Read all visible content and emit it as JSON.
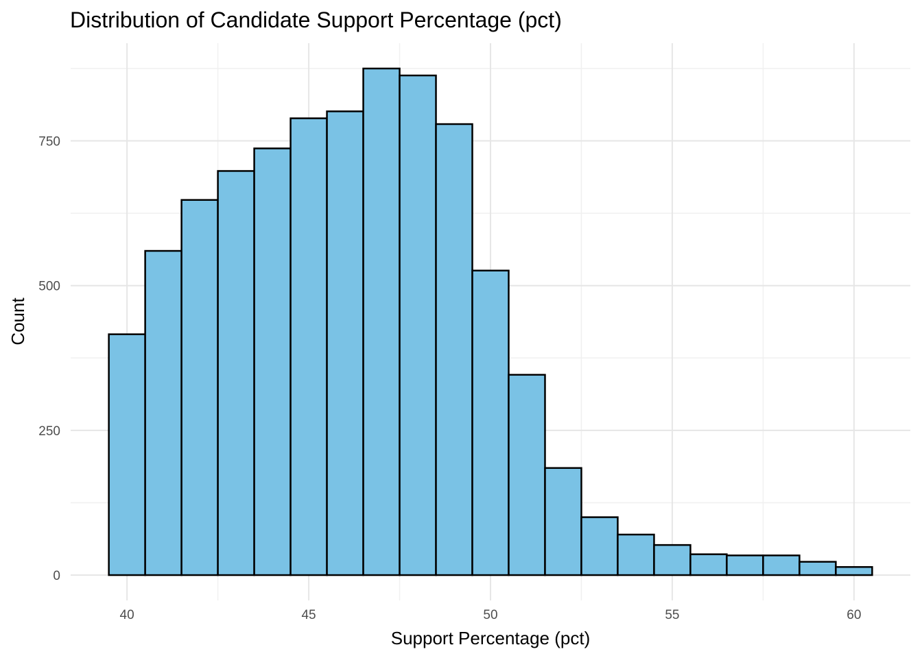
{
  "chart_data": {
    "type": "bar",
    "title": "Distribution of Candidate Support Percentage (pct)",
    "xlabel": "Support Percentage (pct)",
    "ylabel": "Count",
    "bin_width": 1,
    "bins": [
      {
        "center": 40,
        "count": 416
      },
      {
        "center": 41,
        "count": 560
      },
      {
        "center": 42,
        "count": 648
      },
      {
        "center": 43,
        "count": 698
      },
      {
        "center": 44,
        "count": 737
      },
      {
        "center": 45,
        "count": 789
      },
      {
        "center": 46,
        "count": 801
      },
      {
        "center": 47,
        "count": 875
      },
      {
        "center": 48,
        "count": 863
      },
      {
        "center": 49,
        "count": 779
      },
      {
        "center": 50,
        "count": 526
      },
      {
        "center": 51,
        "count": 346
      },
      {
        "center": 52,
        "count": 185
      },
      {
        "center": 53,
        "count": 100
      },
      {
        "center": 54,
        "count": 70
      },
      {
        "center": 55,
        "count": 52
      },
      {
        "center": 56,
        "count": 36
      },
      {
        "center": 57,
        "count": 34
      },
      {
        "center": 58,
        "count": 34
      },
      {
        "center": 59,
        "count": 23
      },
      {
        "center": 60,
        "count": 14
      }
    ],
    "xlim": [
      38.45,
      61.55
    ],
    "ylim": [
      -43.75,
      918.75
    ],
    "x_ticks": [
      40,
      45,
      50,
      55,
      60
    ],
    "y_ticks": [
      0,
      250,
      500,
      750
    ],
    "grid": true,
    "bar_color": "#7AC2E5",
    "bar_outline": "#000000"
  }
}
